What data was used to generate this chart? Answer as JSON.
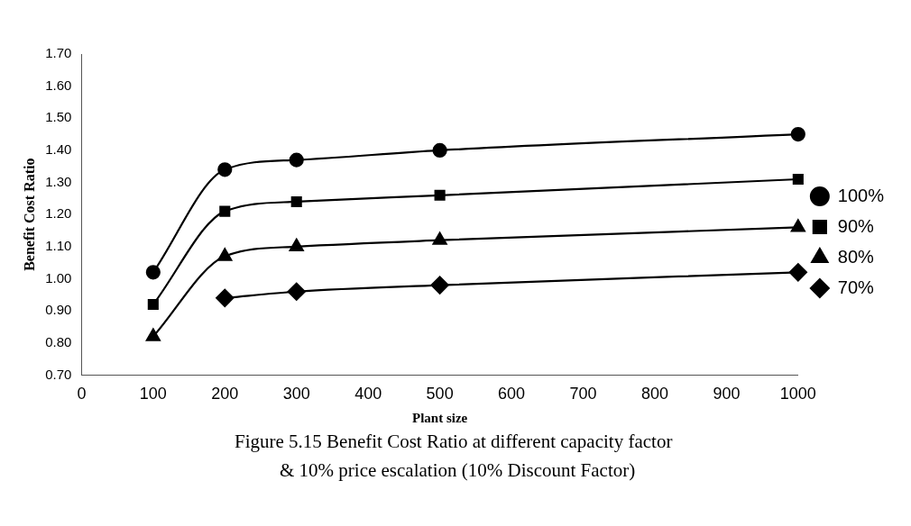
{
  "chart_data": {
    "type": "line",
    "xlabel": "Plant size",
    "ylabel": "Benefit Cost Ratio",
    "x": [
      100,
      200,
      300,
      500,
      1000
    ],
    "series": [
      {
        "name": "100%",
        "color": "#000000",
        "marker": "circle",
        "values": [
          1.02,
          1.34,
          1.37,
          1.4,
          1.45
        ]
      },
      {
        "name": "90%",
        "color": "#000000",
        "marker": "square",
        "values": [
          0.92,
          1.21,
          1.24,
          1.26,
          1.31
        ]
      },
      {
        "name": "80%",
        "color": "#000000",
        "marker": "triangle",
        "values": [
          0.82,
          1.07,
          1.1,
          1.12,
          1.16
        ]
      },
      {
        "name": "70%",
        "color": "#000000",
        "marker": "diamond",
        "values": [
          null,
          0.94,
          0.96,
          0.98,
          1.02
        ]
      }
    ],
    "xlim": [
      0,
      1000
    ],
    "xticks": [
      0,
      100,
      200,
      300,
      400,
      500,
      600,
      700,
      800,
      900,
      1000
    ],
    "ylim": [
      0.7,
      1.7
    ],
    "yticks": [
      {
        "value": 0.7,
        "label": "0.70"
      },
      {
        "value": 0.8,
        "label": "0.80"
      },
      {
        "value": 0.9,
        "label": "0.90"
      },
      {
        "value": 1.0,
        "label": "1.00"
      },
      {
        "value": 1.1,
        "label": "1.10"
      },
      {
        "value": 1.2,
        "label": "1.20"
      },
      {
        "value": 1.3,
        "label": "1.30"
      },
      {
        "value": 1.4,
        "label": "1.40"
      },
      {
        "value": 1.5,
        "label": "1.50"
      },
      {
        "value": 1.6,
        "label": "1.60"
      },
      {
        "value": 1.7,
        "label": "1.70"
      }
    ],
    "grid": false,
    "legend": "right",
    "line_style": "solid",
    "annotations": [
      "Figure 5.15  Benefit Cost Ratio at different capacity factor",
      "& 10% price escalation (10% Discount Factor)"
    ]
  }
}
